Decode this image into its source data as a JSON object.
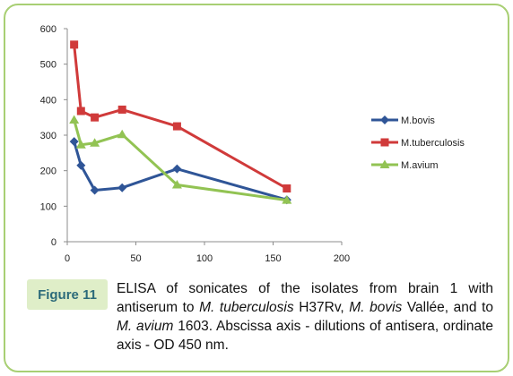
{
  "figure": {
    "label": "Figure 11",
    "caption_parts": [
      {
        "text": "ELISA of sonicates of the isolates from brain 1 with antiserum to ",
        "italic": false
      },
      {
        "text": "M. tuberculosis",
        "italic": true
      },
      {
        "text": " H37Rv, ",
        "italic": false
      },
      {
        "text": "M. bovis",
        "italic": true
      },
      {
        "text": " Vallée, and to ",
        "italic": false
      },
      {
        "text": "M. avium",
        "italic": true
      },
      {
        "text": " 1603. Abscissa axis - dilutions of antisera, ordinate axis - OD 450 nm.",
        "italic": false
      }
    ]
  },
  "colors": {
    "frame_border": "#a8cf73",
    "label_bg": "#dfeec8",
    "label_text": "#2c6b7a"
  },
  "chart_data": {
    "type": "line",
    "title": "",
    "xlabel": "",
    "ylabel": "",
    "xlim": [
      0,
      200
    ],
    "ylim": [
      0,
      600
    ],
    "xticks": [
      0,
      50,
      100,
      150,
      200
    ],
    "yticks": [
      0,
      100,
      200,
      300,
      400,
      500,
      600
    ],
    "grid": false,
    "legend_position": "right",
    "series": [
      {
        "name": "M.bovis",
        "color": "#2f5597",
        "marker": "diamond",
        "x": [
          5,
          10,
          20,
          40,
          80,
          160
        ],
        "y": [
          282,
          215,
          145,
          152,
          205,
          118
        ]
      },
      {
        "name": "M.tuberculosis",
        "color": "#d03a3a",
        "marker": "square",
        "x": [
          5,
          10,
          20,
          40,
          80,
          160
        ],
        "y": [
          555,
          368,
          350,
          372,
          325,
          150
        ]
      },
      {
        "name": "M.avium",
        "color": "#92c353",
        "marker": "triangle",
        "x": [
          5,
          10,
          20,
          40,
          80,
          160
        ],
        "y": [
          343,
          273,
          278,
          302,
          160,
          117
        ]
      }
    ]
  }
}
